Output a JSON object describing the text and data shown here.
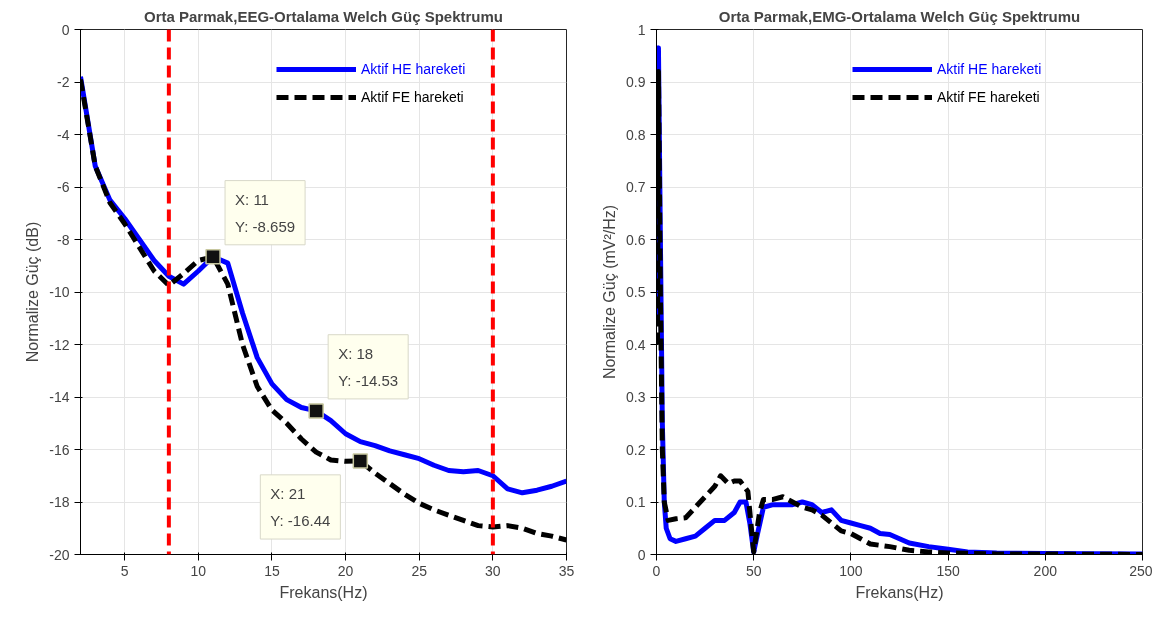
{
  "chart_data": [
    {
      "type": "line",
      "title": "Orta Parmak,EEG-Ortalama Welch Güç Spektrumu",
      "xlabel": "Frekans(Hz)",
      "ylabel": "Normalize Güç (dB)",
      "x": [
        2,
        3,
        4,
        5,
        6,
        7,
        8,
        9,
        10,
        11,
        12,
        13,
        14,
        15,
        16,
        17,
        18,
        19,
        20,
        21,
        22,
        23,
        24,
        25,
        26,
        27,
        28,
        29,
        30,
        31,
        32,
        33,
        34,
        35
      ],
      "series": [
        {
          "name": "Aktif HE hareketi",
          "color": "#0000ff",
          "line_style": "solid",
          "values": [
            -1.8,
            -5.2,
            -6.5,
            -7.2,
            -8.0,
            -8.8,
            -9.4,
            -9.7,
            -9.2,
            -8.659,
            -8.9,
            -10.8,
            -12.5,
            -13.5,
            -14.1,
            -14.4,
            -14.53,
            -14.9,
            -15.4,
            -15.7,
            -15.85,
            -16.05,
            -16.2,
            -16.35,
            -16.6,
            -16.8,
            -16.85,
            -16.8,
            -17.0,
            -17.5,
            -17.65,
            -17.55,
            -17.4,
            -17.2
          ]
        },
        {
          "name": "Aktif FE hareketi",
          "color": "#000000",
          "line_style": "dashed",
          "values": [
            -1.9,
            -5.2,
            -6.6,
            -7.4,
            -8.3,
            -9.2,
            -9.75,
            -9.3,
            -8.8,
            -8.659,
            -9.7,
            -12.0,
            -13.6,
            -14.5,
            -15.0,
            -15.6,
            -16.1,
            -16.4,
            -16.45,
            -16.44,
            -16.9,
            -17.3,
            -17.7,
            -18.05,
            -18.3,
            -18.5,
            -18.7,
            -18.9,
            -18.95,
            -18.9,
            -19.0,
            -19.2,
            -19.3,
            -19.45
          ]
        }
      ],
      "xlim": [
        2,
        35
      ],
      "xticks": [
        5,
        10,
        15,
        20,
        25,
        30,
        35
      ],
      "ylim": [
        -20,
        0
      ],
      "yticks": [
        -20,
        -18,
        -16,
        -14,
        -12,
        -10,
        -8,
        -6,
        -4,
        -2,
        0
      ],
      "ref_lines": [
        {
          "axis": "x",
          "value": 8,
          "color": "#ff0000",
          "line_style": "dashed"
        },
        {
          "axis": "x",
          "value": 30,
          "color": "#ff0000",
          "line_style": "dashed"
        }
      ],
      "annotations": [
        {
          "text": "X: 11\nY: -8.659",
          "x": 11,
          "y": -8.659
        },
        {
          "text": "X: 18\nY: -14.53",
          "x": 18,
          "y": -14.53
        },
        {
          "text": "X: 21\nY: -16.44",
          "x": 21,
          "y": -16.44
        }
      ],
      "grid": true,
      "legend": "top right"
    },
    {
      "type": "line",
      "title": "Orta Parmak,EMG-Ortalama Welch Güç Spektrumu",
      "xlabel": "Frekans(Hz)",
      "ylabel": "Normalize Güç (mV²/Hz)",
      "series": [
        {
          "name": "Aktif HE hareketi",
          "color": "#0000ff",
          "line_style": "solid",
          "x": [
            0.5,
            1,
            2,
            3,
            4,
            5,
            7,
            10,
            15,
            20,
            25,
            30,
            35,
            40,
            43,
            46,
            48,
            50,
            52,
            55,
            60,
            70,
            75,
            80,
            85,
            90,
            95,
            100,
            105,
            110,
            115,
            120,
            125,
            130,
            140,
            150,
            160,
            175,
            200,
            250
          ],
          "values": [
            0.45,
            0.965,
            0.6,
            0.25,
            0.1,
            0.05,
            0.03,
            0.025,
            0.03,
            0.035,
            0.05,
            0.065,
            0.065,
            0.08,
            0.1,
            0.1,
            0.06,
            0.005,
            0.04,
            0.09,
            0.095,
            0.095,
            0.1,
            0.095,
            0.08,
            0.085,
            0.065,
            0.06,
            0.055,
            0.05,
            0.04,
            0.038,
            0.03,
            0.022,
            0.015,
            0.01,
            0.005,
            0.003,
            0.002,
            0.001
          ]
        },
        {
          "name": "Aktif FE hareketi",
          "color": "#000000",
          "line_style": "dashed",
          "x": [
            0.5,
            1,
            2,
            3,
            4,
            6,
            10,
            15,
            20,
            25,
            30,
            33,
            37,
            40,
            43,
            47,
            50,
            53,
            55,
            60,
            65,
            70,
            75,
            80,
            85,
            90,
            95,
            100,
            105,
            110,
            120,
            130,
            140,
            150,
            175,
            200,
            250
          ],
          "values": [
            0.4,
            0.92,
            0.5,
            0.2,
            0.1,
            0.065,
            0.068,
            0.07,
            0.09,
            0.11,
            0.13,
            0.15,
            0.135,
            0.14,
            0.14,
            0.12,
            0.005,
            0.08,
            0.105,
            0.105,
            0.11,
            0.1,
            0.09,
            0.085,
            0.075,
            0.06,
            0.045,
            0.04,
            0.03,
            0.02,
            0.015,
            0.008,
            0.005,
            0.003,
            0.001,
            0.001,
            0
          ]
        }
      ],
      "xlim": [
        0,
        250
      ],
      "xticks": [
        0,
        50,
        100,
        150,
        200,
        250
      ],
      "ylim": [
        0,
        1
      ],
      "yticks": [
        0,
        0.1,
        0.2,
        0.3,
        0.4,
        0.5,
        0.6,
        0.7,
        0.8,
        0.9,
        1
      ],
      "grid": true,
      "legend": "top right"
    }
  ]
}
